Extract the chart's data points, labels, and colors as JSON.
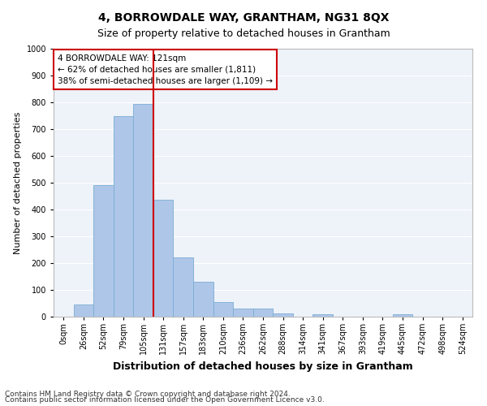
{
  "title": "4, BORROWDALE WAY, GRANTHAM, NG31 8QX",
  "subtitle": "Size of property relative to detached houses in Grantham",
  "xlabel": "Distribution of detached houses by size in Grantham",
  "ylabel": "Number of detached properties",
  "bar_labels": [
    "0sqm",
    "26sqm",
    "52sqm",
    "79sqm",
    "105sqm",
    "131sqm",
    "157sqm",
    "183sqm",
    "210sqm",
    "236sqm",
    "262sqm",
    "288sqm",
    "314sqm",
    "341sqm",
    "367sqm",
    "393sqm",
    "419sqm",
    "445sqm",
    "472sqm",
    "498sqm",
    "524sqm"
  ],
  "bar_values": [
    0,
    45,
    490,
    750,
    795,
    435,
    220,
    130,
    55,
    30,
    30,
    12,
    0,
    8,
    0,
    0,
    0,
    8,
    0,
    0,
    0
  ],
  "bar_color": "#aec6e8",
  "bar_edge_color": "#7aadd4",
  "vline_color": "#cc0000",
  "vline_position": 4.5,
  "ylim": [
    0,
    1000
  ],
  "annotation_text": "4 BORROWDALE WAY: 121sqm\n← 62% of detached houses are smaller (1,811)\n38% of semi-detached houses are larger (1,109) →",
  "annotation_box_color": "#ffffff",
  "annotation_box_edge": "#cc0000",
  "footnote1": "Contains HM Land Registry data © Crown copyright and database right 2024.",
  "footnote2": "Contains public sector information licensed under the Open Government Licence v3.0.",
  "bg_color": "#eef2f9",
  "grid_color": "#ffffff",
  "fig_bg_color": "#ffffff",
  "title_fontsize": 10,
  "subtitle_fontsize": 9,
  "ylabel_fontsize": 8,
  "xlabel_fontsize": 9,
  "tick_fontsize": 7,
  "annot_fontsize": 7.5,
  "footnote_fontsize": 6.5
}
